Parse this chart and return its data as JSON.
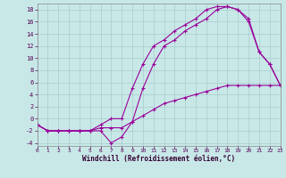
{
  "xlabel": "Windchill (Refroidissement éolien,°C)",
  "background_color": "#c8e8e8",
  "line_color": "#990099",
  "grid_color": "#aacccc",
  "xlim": [
    0,
    23
  ],
  "ylim": [
    -4.5,
    19
  ],
  "xticks": [
    0,
    1,
    2,
    3,
    4,
    5,
    6,
    7,
    8,
    9,
    10,
    11,
    12,
    13,
    14,
    15,
    16,
    17,
    18,
    19,
    20,
    21,
    22,
    23
  ],
  "yticks": [
    -4,
    -2,
    0,
    2,
    4,
    6,
    8,
    10,
    12,
    14,
    16,
    18
  ],
  "line1_x": [
    0,
    1,
    2,
    3,
    4,
    5,
    6,
    7,
    8,
    9,
    10,
    11,
    12,
    13,
    14,
    15,
    16,
    17,
    18,
    19,
    20,
    21,
    22,
    23
  ],
  "line1_y": [
    -1,
    -2,
    -2,
    -2,
    -2,
    -2,
    -1.5,
    -1.5,
    -1.5,
    -0.5,
    0.5,
    1.5,
    2.5,
    3,
    3.5,
    4,
    4.5,
    5,
    5.5,
    5.5,
    5.5,
    5.5,
    5.5,
    5.5
  ],
  "line2_x": [
    0,
    1,
    2,
    3,
    4,
    5,
    6,
    7,
    8,
    9,
    10,
    11,
    12,
    13,
    14,
    15,
    16,
    17,
    18,
    19,
    20,
    21,
    22,
    23
  ],
  "line2_y": [
    -1,
    -2,
    -2,
    -2,
    -2,
    -2,
    -1,
    0,
    0,
    5,
    9,
    12,
    13,
    14.5,
    15.5,
    16.5,
    18,
    18.5,
    18.5,
    18,
    16.5,
    11,
    9,
    5.5
  ],
  "line3_x": [
    0,
    1,
    2,
    3,
    4,
    5,
    6,
    7,
    8,
    9,
    10,
    11,
    12,
    13,
    14,
    15,
    16,
    17,
    18,
    19,
    20,
    21,
    22,
    23
  ],
  "line3_y": [
    -1,
    -2,
    -2,
    -2,
    -2,
    -2,
    -2,
    -4,
    -3,
    -0.5,
    5,
    9,
    12,
    13,
    14.5,
    15.5,
    16.5,
    18,
    18.5,
    18,
    16,
    11,
    9,
    5.5
  ]
}
